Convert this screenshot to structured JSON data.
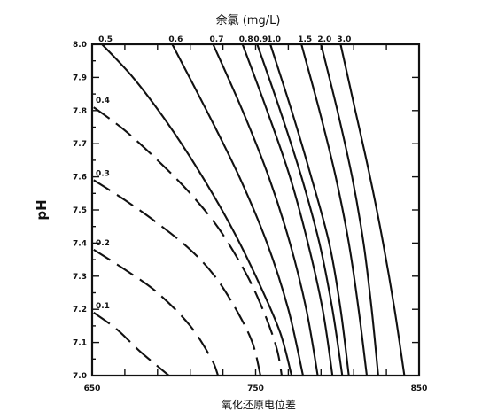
{
  "chart_data": {
    "type": "line",
    "title": "余氯 (mg/L)",
    "xlabel": "氧化还原电位差",
    "ylabel": "pH",
    "xlim": [
      650,
      850
    ],
    "ylim": [
      7.0,
      8.0
    ],
    "x_tick_labels": [
      "650",
      "750",
      "850"
    ],
    "y_tick_labels": [
      "7.0",
      "7.1",
      "7.2",
      "7.3",
      "7.4",
      "7.5",
      "7.6",
      "7.7",
      "7.8",
      "7.9",
      "8.0"
    ],
    "grid": false,
    "series": [
      {
        "name": "0.1",
        "style": "dashed",
        "points": [
          [
            651,
            7.19
          ],
          [
            665,
            7.14
          ],
          [
            680,
            7.07
          ],
          [
            697,
            7.0
          ]
        ]
      },
      {
        "name": "0.2",
        "style": "dashed",
        "points": [
          [
            651,
            7.38
          ],
          [
            670,
            7.32
          ],
          [
            690,
            7.25
          ],
          [
            710,
            7.15
          ],
          [
            723,
            7.05
          ],
          [
            727,
            7.0
          ]
        ]
      },
      {
        "name": "0.3",
        "style": "dashed",
        "points": [
          [
            651,
            7.59
          ],
          [
            670,
            7.53
          ],
          [
            690,
            7.46
          ],
          [
            710,
            7.38
          ],
          [
            725,
            7.3
          ],
          [
            738,
            7.2
          ],
          [
            748,
            7.1
          ],
          [
            753,
            7.0
          ]
        ]
      },
      {
        "name": "0.4",
        "style": "dashed",
        "points": [
          [
            651,
            7.81
          ],
          [
            670,
            7.74
          ],
          [
            690,
            7.65
          ],
          [
            710,
            7.55
          ],
          [
            728,
            7.44
          ],
          [
            745,
            7.3
          ],
          [
            756,
            7.18
          ],
          [
            763,
            7.08
          ],
          [
            766,
            7.0
          ]
        ]
      },
      {
        "name": "0.5",
        "style": "solid",
        "points": [
          [
            656,
            8.0
          ],
          [
            675,
            7.9
          ],
          [
            695,
            7.77
          ],
          [
            715,
            7.62
          ],
          [
            735,
            7.45
          ],
          [
            752,
            7.28
          ],
          [
            765,
            7.13
          ],
          [
            772,
            7.0
          ]
        ]
      },
      {
        "name": "0.6",
        "style": "solid",
        "points": [
          [
            699,
            8.0
          ],
          [
            720,
            7.8
          ],
          [
            740,
            7.6
          ],
          [
            757,
            7.4
          ],
          [
            770,
            7.2
          ],
          [
            779,
            7.0
          ]
        ]
      },
      {
        "name": "0.7",
        "style": "solid",
        "points": [
          [
            724,
            8.0
          ],
          [
            742,
            7.8
          ],
          [
            758,
            7.6
          ],
          [
            771,
            7.4
          ],
          [
            781,
            7.2
          ],
          [
            788,
            7.0
          ]
        ]
      },
      {
        "name": "0.8",
        "style": "solid",
        "points": [
          [
            742,
            8.0
          ],
          [
            757,
            7.8
          ],
          [
            771,
            7.6
          ],
          [
            782,
            7.4
          ],
          [
            791,
            7.2
          ],
          [
            797,
            7.0
          ]
        ]
      },
      {
        "name": "0.9",
        "style": "solid",
        "points": [
          [
            751,
            8.0
          ],
          [
            765,
            7.8
          ],
          [
            778,
            7.6
          ],
          [
            789,
            7.4
          ],
          [
            797,
            7.2
          ],
          [
            803,
            7.0
          ]
        ]
      },
      {
        "name": "1.0",
        "style": "solid",
        "points": [
          [
            759,
            8.0
          ],
          [
            772,
            7.8
          ],
          [
            784,
            7.6
          ],
          [
            795,
            7.4
          ],
          [
            802,
            7.2
          ],
          [
            807,
            7.0
          ]
        ]
      },
      {
        "name": "1.5",
        "style": "solid",
        "points": [
          [
            778,
            8.0
          ],
          [
            789,
            7.8
          ],
          [
            799,
            7.6
          ],
          [
            807,
            7.4
          ],
          [
            813,
            7.2
          ],
          [
            818,
            7.0
          ]
        ]
      },
      {
        "name": "2.0",
        "style": "solid",
        "points": [
          [
            790,
            8.0
          ],
          [
            800,
            7.8
          ],
          [
            809,
            7.6
          ],
          [
            816,
            7.4
          ],
          [
            821,
            7.2
          ],
          [
            825,
            7.0
          ]
        ]
      },
      {
        "name": "3.0",
        "style": "solid",
        "points": [
          [
            802,
            8.0
          ],
          [
            811,
            7.8
          ],
          [
            820,
            7.6
          ],
          [
            828,
            7.4
          ],
          [
            835,
            7.2
          ],
          [
            841,
            7.0
          ]
        ]
      }
    ]
  }
}
